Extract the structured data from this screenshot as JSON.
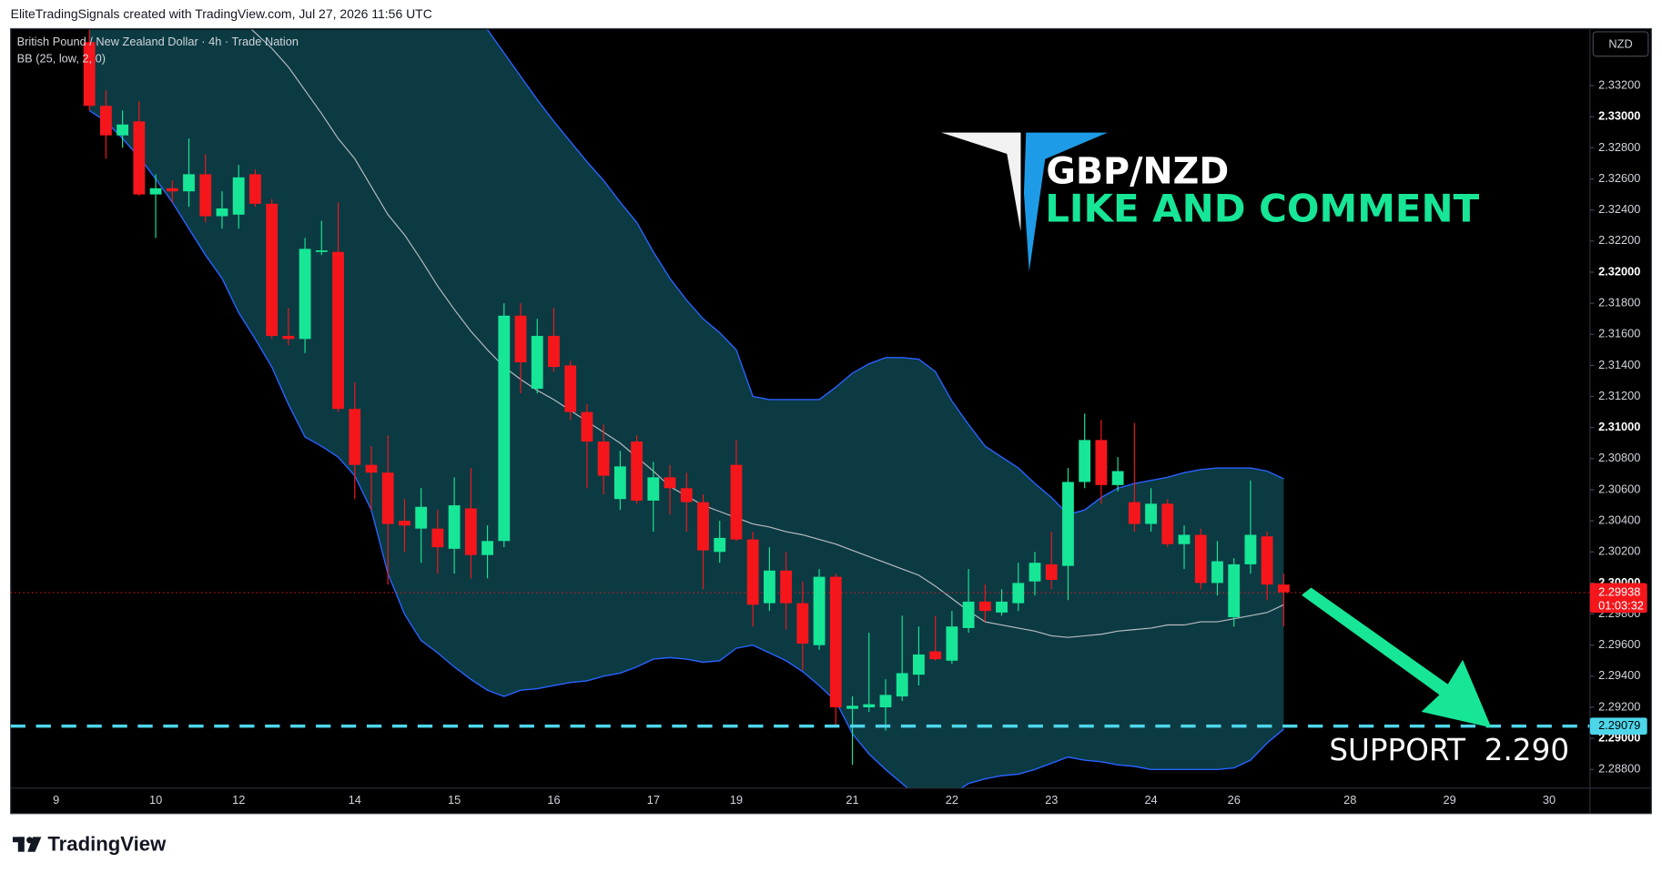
{
  "header": {
    "credit": "EliteTradingSignals created with TradingView.com, Jul 27, 2026 11:56 UTC"
  },
  "chart_data": {
    "type": "candlestick",
    "title": "British Pound / New Zealand Dollar · 4h · Trade Nation",
    "currency": "NZD",
    "up_color": "#17e697",
    "down_color": "#f5161c",
    "categories": [
      "9",
      null,
      null,
      null,
      null,
      null,
      "10",
      null,
      null,
      null,
      null,
      "12",
      null,
      null,
      null,
      null,
      null,
      null,
      "14",
      null,
      null,
      null,
      null,
      null,
      "15",
      null,
      null,
      null,
      null,
      null,
      "16",
      null,
      null,
      null,
      null,
      null,
      "17",
      null,
      null,
      null,
      null,
      "19",
      null,
      null,
      null,
      null,
      null,
      null,
      "21",
      null,
      null,
      null,
      null,
      null,
      "22",
      null,
      null,
      null,
      null,
      null,
      "23",
      null,
      null,
      null,
      null,
      null,
      "24",
      null,
      null,
      null,
      null,
      "26",
      null,
      null,
      null,
      null,
      null,
      null,
      "28",
      null,
      null,
      null,
      null,
      null,
      "29",
      null,
      null,
      null,
      null,
      null,
      "30",
      null,
      null
    ],
    "ohlc": [
      null,
      null,
      [
        2.3348,
        2.3356,
        2.3304,
        2.3307
      ],
      [
        2.3307,
        2.3317,
        2.3273,
        2.3288
      ],
      [
        2.3288,
        2.3304,
        2.328,
        2.3295
      ],
      [
        2.3297,
        2.331,
        2.3249,
        2.325
      ],
      [
        2.325,
        2.3263,
        2.3222,
        2.3254
      ],
      [
        2.3254,
        2.3259,
        2.3245,
        2.3252
      ],
      [
        2.3252,
        2.3286,
        2.3242,
        2.3263
      ],
      [
        2.3263,
        2.3276,
        2.3232,
        2.3236
      ],
      [
        2.3236,
        2.3252,
        2.3228,
        2.3241
      ],
      [
        2.3237,
        2.3269,
        2.3228,
        2.3261
      ],
      [
        2.3263,
        2.3266,
        2.3242,
        2.3244
      ],
      [
        2.3244,
        2.3247,
        2.3157,
        2.3159
      ],
      [
        2.3159,
        2.3177,
        2.3153,
        2.3157
      ],
      [
        2.3157,
        2.3222,
        2.3148,
        2.3215
      ],
      [
        2.3213,
        2.3233,
        2.3211,
        2.3214
      ],
      [
        2.3213,
        2.3245,
        2.311,
        2.3112
      ],
      [
        2.3112,
        2.3129,
        2.3054,
        2.3076
      ],
      [
        2.3076,
        2.3088,
        2.3047,
        2.3071
      ],
      [
        2.3071,
        2.3095,
        2.2999,
        2.3038
      ],
      [
        2.304,
        2.3054,
        2.302,
        2.3037
      ],
      [
        2.3035,
        2.3061,
        2.3013,
        2.3049
      ],
      [
        2.3035,
        2.3047,
        2.3006,
        2.3023
      ],
      [
        2.3022,
        2.3068,
        2.3006,
        2.305
      ],
      [
        2.3048,
        2.3074,
        2.3003,
        2.3018
      ],
      [
        2.3018,
        2.3037,
        2.3003,
        2.3027
      ],
      [
        2.3027,
        2.318,
        2.3023,
        2.3172
      ],
      [
        2.3172,
        2.318,
        2.3122,
        2.3142
      ],
      [
        2.3125,
        2.317,
        2.3122,
        2.3159
      ],
      [
        2.3159,
        2.3177,
        2.3136,
        2.3139
      ],
      [
        2.314,
        2.3143,
        2.3105,
        2.311
      ],
      [
        2.311,
        2.3115,
        2.3061,
        2.3091
      ],
      [
        2.3091,
        2.3102,
        2.3057,
        2.3069
      ],
      [
        2.3054,
        2.3085,
        2.3047,
        2.3075
      ],
      [
        2.3091,
        2.3095,
        2.3051,
        2.3053
      ],
      [
        2.3053,
        2.3078,
        2.3033,
        2.3068
      ],
      [
        2.3068,
        2.3076,
        2.3044,
        2.3061
      ],
      [
        2.3061,
        2.3071,
        2.3033,
        2.3052
      ],
      [
        2.3052,
        2.3057,
        2.2996,
        2.3021
      ],
      [
        2.302,
        2.304,
        2.3013,
        2.3029
      ],
      [
        2.3076,
        2.3092,
        2.3027,
        2.3028
      ],
      [
        2.3028,
        2.3033,
        2.2972,
        2.2986
      ],
      [
        2.2987,
        2.3023,
        2.2982,
        2.3008
      ],
      [
        2.3008,
        2.302,
        2.297,
        2.2987
      ],
      [
        2.2987,
        2.3001,
        2.2944,
        2.2961
      ],
      [
        2.296,
        2.3009,
        2.2957,
        2.3004
      ],
      [
        2.3004,
        2.3006,
        2.2907,
        2.292
      ],
      [
        2.2919,
        2.2927,
        2.2883,
        2.2921
      ],
      [
        2.292,
        2.2968,
        2.2917,
        2.2922
      ],
      [
        2.292,
        2.2938,
        2.2905,
        2.2928
      ],
      [
        2.2927,
        2.2979,
        2.2924,
        2.2942
      ],
      [
        2.2941,
        2.2972,
        2.2934,
        2.2954
      ],
      [
        2.2956,
        2.2979,
        2.295,
        2.2951
      ],
      [
        2.295,
        2.2982,
        2.2948,
        2.2972
      ],
      [
        2.2971,
        2.3009,
        2.2968,
        2.2988
      ],
      [
        2.2988,
        2.2999,
        2.2975,
        2.2982
      ],
      [
        2.2981,
        2.2996,
        2.2979,
        2.2988
      ],
      [
        2.2987,
        2.3013,
        2.2982,
        2.3
      ],
      [
        2.3001,
        2.302,
        2.2992,
        2.3013
      ],
      [
        2.3012,
        2.3033,
        2.2996,
        2.3002
      ],
      [
        2.3011,
        2.3074,
        2.2989,
        2.3065
      ],
      [
        2.3065,
        2.3109,
        2.3061,
        2.3092
      ],
      [
        2.3092,
        2.3105,
        2.3051,
        2.3063
      ],
      [
        2.3063,
        2.3081,
        2.3059,
        2.3072
      ],
      [
        2.3052,
        2.3103,
        2.3033,
        2.3038
      ],
      [
        2.3038,
        2.3061,
        2.3033,
        2.3051
      ],
      [
        2.3051,
        2.3054,
        2.3023,
        2.3025
      ],
      [
        2.3025,
        2.3037,
        2.3009,
        2.3031
      ],
      [
        2.3031,
        2.3035,
        2.2996,
        2.3
      ],
      [
        2.3,
        2.3027,
        2.2992,
        2.3014
      ],
      [
        2.2978,
        2.3016,
        2.2972,
        2.3012
      ],
      [
        2.3012,
        2.3066,
        2.3006,
        2.3031
      ],
      [
        2.303,
        2.3033,
        2.2989,
        2.2999
      ],
      [
        2.2999,
        2.3006,
        2.2972,
        2.2994
      ],
      null,
      null,
      null,
      null,
      null,
      null,
      null,
      null,
      null,
      null,
      null,
      null,
      null,
      null,
      null,
      null,
      null,
      null
    ],
    "indicator": {
      "label": "BB (25, low, 2, 0)",
      "line_color": "#2962ff",
      "basis_color": "#b8bcc4",
      "fill_color": "#0b3a42",
      "upper": [
        null,
        null,
        2.3478,
        2.3473,
        2.3468,
        2.3463,
        2.3457,
        2.3453,
        2.3447,
        2.3442,
        2.3438,
        2.3432,
        2.3427,
        2.3422,
        2.3417,
        2.3412,
        2.3407,
        2.3402,
        2.3397,
        2.3392,
        2.3387,
        2.3382,
        2.3377,
        2.3371,
        2.3367,
        2.3362,
        2.3356,
        2.3341,
        2.3326,
        2.3311,
        2.3297,
        2.3284,
        2.3271,
        2.3259,
        2.3245,
        2.3232,
        2.3213,
        2.3196,
        2.3182,
        2.317,
        2.3161,
        2.315,
        2.312,
        2.3118,
        2.3118,
        2.3118,
        2.3118,
        2.3126,
        2.3135,
        2.3141,
        2.3145,
        2.3145,
        2.3144,
        2.3136,
        2.3117,
        2.3102,
        2.3088,
        2.3081,
        2.3074,
        2.3064,
        2.3055,
        2.3044,
        2.3047,
        2.3055,
        2.3061,
        2.3064,
        2.3066,
        2.3068,
        2.3071,
        2.3073,
        2.3074,
        2.3074,
        2.3074,
        2.3072,
        2.3067,
        null,
        null,
        null,
        null,
        null,
        null,
        null,
        null,
        null,
        null,
        null,
        null,
        null,
        null,
        null,
        null,
        null,
        null
      ],
      "basis": [
        null,
        null,
        2.3458,
        2.3447,
        2.3437,
        2.3427,
        2.3416,
        2.3406,
        2.3395,
        2.3385,
        2.3375,
        2.3364,
        2.3354,
        2.3344,
        2.3332,
        2.3317,
        2.3302,
        2.3286,
        2.3273,
        2.3255,
        2.3237,
        2.3224,
        2.3208,
        2.3191,
        2.3176,
        2.3162,
        2.315,
        2.3139,
        2.3131,
        2.3124,
        2.3118,
        2.3111,
        2.3104,
        2.3097,
        2.309,
        2.3081,
        2.3072,
        2.3062,
        2.3056,
        2.305,
        2.3046,
        2.3042,
        2.3038,
        2.3036,
        2.3033,
        2.3031,
        2.3028,
        2.3025,
        2.3021,
        2.3017,
        2.3013,
        2.3009,
        2.3005,
        2.2998,
        2.299,
        2.2982,
        2.2975,
        2.2973,
        2.2971,
        2.2969,
        2.2966,
        2.2965,
        2.2966,
        2.2967,
        2.2969,
        2.297,
        2.2971,
        2.2973,
        2.2973,
        2.2975,
        2.2975,
        2.2977,
        2.2979,
        2.2981,
        2.2986,
        null,
        null,
        null,
        null,
        null,
        null,
        null,
        null,
        null,
        null,
        null,
        null,
        null,
        null,
        null,
        null,
        null,
        null
      ],
      "lower": [
        null,
        null,
        2.3304,
        2.3297,
        2.3286,
        2.3274,
        2.326,
        2.3245,
        2.3228,
        2.3211,
        2.3196,
        2.3174,
        2.3157,
        2.3139,
        2.3115,
        2.3094,
        2.3088,
        2.3081,
        2.3069,
        2.3047,
        2.3006,
        2.298,
        2.2963,
        2.2955,
        2.2946,
        2.2938,
        2.2931,
        2.2927,
        2.2931,
        2.2932,
        2.2934,
        2.2936,
        2.2937,
        2.294,
        2.2942,
        2.2946,
        2.2951,
        2.2952,
        2.2951,
        2.2949,
        2.295,
        2.2958,
        2.296,
        2.2955,
        2.295,
        2.2943,
        2.2934,
        2.2924,
        2.2903,
        2.289,
        2.288,
        2.2871,
        2.2862,
        2.2861,
        2.2864,
        2.2871,
        2.2874,
        2.2876,
        2.2877,
        2.288,
        2.2884,
        2.2888,
        2.2886,
        2.2885,
        2.2883,
        2.2882,
        2.288,
        2.288,
        2.288,
        2.288,
        2.288,
        2.2881,
        2.2886,
        2.2897,
        2.2906,
        null,
        null,
        null,
        null,
        null,
        null,
        null,
        null,
        null,
        null,
        null,
        null,
        null,
        null,
        null,
        null,
        null,
        null
      ]
    },
    "ylim": [
      2.2868,
      2.3356
    ],
    "yticks": [
      {
        "value": 2.288,
        "label": "2.28800"
      },
      {
        "value": 2.29,
        "label": "2.29000"
      },
      {
        "value": 2.292,
        "label": "2.29200"
      },
      {
        "value": 2.294,
        "label": "2.29400"
      },
      {
        "value": 2.296,
        "label": "2.29600"
      },
      {
        "value": 2.298,
        "label": "2.29800"
      },
      {
        "value": 2.3,
        "label": "2.30000"
      },
      {
        "value": 2.302,
        "label": "2.30200"
      },
      {
        "value": 2.304,
        "label": "2.30400"
      },
      {
        "value": 2.306,
        "label": "2.30600"
      },
      {
        "value": 2.308,
        "label": "2.30800"
      },
      {
        "value": 2.31,
        "label": "2.31000"
      },
      {
        "value": 2.312,
        "label": "2.31200"
      },
      {
        "value": 2.314,
        "label": "2.31400"
      },
      {
        "value": 2.316,
        "label": "2.31600"
      },
      {
        "value": 2.318,
        "label": "2.31800"
      },
      {
        "value": 2.32,
        "label": "2.32000"
      },
      {
        "value": 2.322,
        "label": "2.32200"
      },
      {
        "value": 2.324,
        "label": "2.32400"
      },
      {
        "value": 2.326,
        "label": "2.32600"
      },
      {
        "value": 2.328,
        "label": "2.32800"
      },
      {
        "value": 2.33,
        "label": "2.33000"
      },
      {
        "value": 2.332,
        "label": "2.33200"
      }
    ],
    "last_price": 2.29938,
    "countdown": "01:03:32",
    "support": 2.29079,
    "support_color": "#4dd6ea",
    "annotations": [
      "GBP/NZD",
      "LIKE AND COMMENT",
      "SUPPORT  2.290"
    ]
  },
  "footer": {
    "brand": "TradingView"
  }
}
